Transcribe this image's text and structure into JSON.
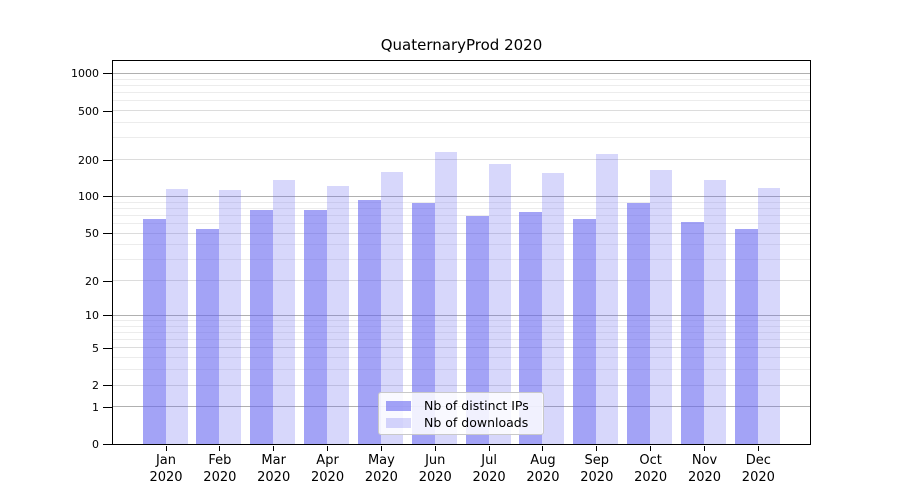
{
  "title": "QuaternaryProd 2020",
  "legend": {
    "items": [
      {
        "label": "Nb of distinct IPs"
      },
      {
        "label": "Nb of downloads"
      }
    ]
  },
  "chart_data": {
    "type": "bar",
    "title": "QuaternaryProd 2020",
    "categories": [
      "Jan",
      "Feb",
      "Mar",
      "Apr",
      "May",
      "Jun",
      "Jul",
      "Aug",
      "Sep",
      "Oct",
      "Nov",
      "Dec"
    ],
    "category_year": "2020",
    "series": [
      {
        "name": "Nb of distinct IPs",
        "values": [
          66,
          54,
          77,
          77,
          93,
          89,
          69,
          74,
          66,
          88,
          62,
          54
        ]
      },
      {
        "name": "Nb of downloads",
        "values": [
          115,
          113,
          137,
          121,
          157,
          230,
          183,
          155,
          220,
          164,
          136,
          118
        ]
      }
    ],
    "y_scale": "log1p",
    "ylim": [
      0,
      1250
    ],
    "y_ticks": [
      0,
      1,
      2,
      5,
      10,
      20,
      50,
      100,
      200,
      500,
      1000
    ],
    "y_ticks_major_grid": [
      1,
      10,
      100,
      1000
    ],
    "y_ticks_minor_grid": [
      3,
      4,
      6,
      7,
      8,
      9,
      30,
      40,
      60,
      70,
      80,
      90,
      300,
      400,
      600,
      700,
      800,
      900
    ],
    "grid": true,
    "legend_position": "lower center"
  },
  "colors": {
    "bar_distinct_ips": "rgba(102,102,240,0.60)",
    "bar_downloads": "rgba(102,102,240,0.26)",
    "grid_major": "#b0b0b0",
    "grid_mid": "#dcdcdc",
    "grid_minor": "#ececec",
    "axis": "#000000",
    "text": "#000000",
    "legend_border": "#c9c9c9",
    "legend_bg": "rgba(255,255,255,0.85)"
  }
}
